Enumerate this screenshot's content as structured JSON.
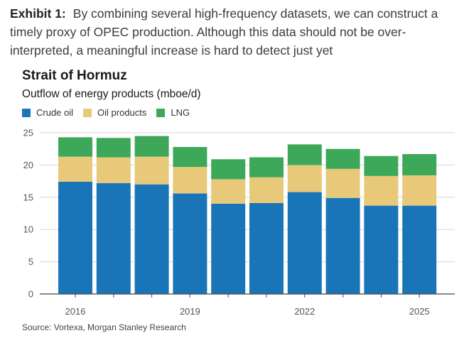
{
  "exhibit": {
    "label": "Exhibit 1:",
    "text": "By combining several high-frequency datasets, we can construct a timely proxy of OPEC production. Although this data should not be over-interpreted, a meaningful increase is hard to detect just yet"
  },
  "chart_data": {
    "type": "bar",
    "stacked": true,
    "title": "Strait of Hormuz",
    "subtitle": "Outflow of energy products (mboe/d)",
    "categories": [
      "2016",
      "2017",
      "2018",
      "2019",
      "2020",
      "2021",
      "2022",
      "2023",
      "2024",
      "2025"
    ],
    "x_tick_labels": [
      "2016",
      "",
      "",
      "2019",
      "",
      "",
      "2022",
      "",
      "",
      "2025"
    ],
    "series": [
      {
        "name": "Crude oil",
        "color": "#1a75b8",
        "values": [
          17.4,
          17.2,
          17.0,
          15.6,
          14.0,
          14.1,
          15.8,
          14.9,
          13.7,
          13.7
        ]
      },
      {
        "name": "Oil products",
        "color": "#e8c979",
        "values": [
          3.9,
          4.0,
          4.3,
          4.1,
          3.8,
          4.0,
          4.2,
          4.5,
          4.6,
          4.7
        ]
      },
      {
        "name": "LNG",
        "color": "#3ea85a",
        "values": [
          3.0,
          3.0,
          3.2,
          3.1,
          3.1,
          3.1,
          3.2,
          3.1,
          3.1,
          3.3
        ]
      }
    ],
    "ylim": [
      0,
      25
    ],
    "yticks": [
      0,
      5,
      10,
      15,
      20,
      25
    ],
    "grid": true,
    "legend": "top-left",
    "xlabel": "",
    "ylabel": ""
  },
  "source": "Source: Vortexa, Morgan Stanley Research"
}
